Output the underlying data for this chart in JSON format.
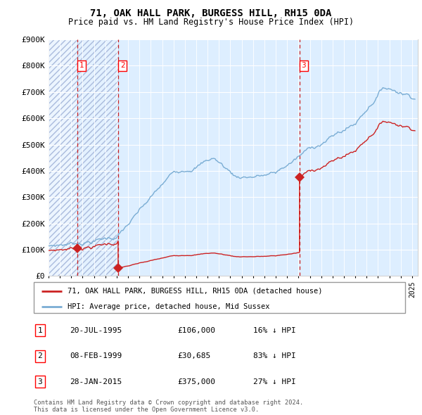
{
  "title": "71, OAK HALL PARK, BURGESS HILL, RH15 0DA",
  "subtitle": "Price paid vs. HM Land Registry's House Price Index (HPI)",
  "ylim": [
    0,
    900000
  ],
  "yticks": [
    0,
    100000,
    200000,
    300000,
    400000,
    500000,
    600000,
    700000,
    800000,
    900000
  ],
  "ytick_labels": [
    "£0",
    "£100K",
    "£200K",
    "£300K",
    "£400K",
    "£500K",
    "£600K",
    "£700K",
    "£800K",
    "£900K"
  ],
  "hpi_color": "#7aadd4",
  "price_color": "#cc2222",
  "background_color": "#ddeeff",
  "sale_points": [
    {
      "date_num": 1995.55,
      "price": 106000,
      "label": "1"
    },
    {
      "date_num": 1999.12,
      "price": 30685,
      "label": "2"
    },
    {
      "date_num": 2015.08,
      "price": 375000,
      "label": "3"
    }
  ],
  "vline_color": "#cc2222",
  "legend_entries": [
    "71, OAK HALL PARK, BURGESS HILL, RH15 0DA (detached house)",
    "HPI: Average price, detached house, Mid Sussex"
  ],
  "table_rows": [
    {
      "num": "1",
      "date": "20-JUL-1995",
      "price": "£106,000",
      "hpi": "16% ↓ HPI"
    },
    {
      "num": "2",
      "date": "08-FEB-1999",
      "price": "£30,685",
      "hpi": "83% ↓ HPI"
    },
    {
      "num": "3",
      "date": "28-JAN-2015",
      "price": "£375,000",
      "hpi": "27% ↓ HPI"
    }
  ],
  "footer": "Contains HM Land Registry data © Crown copyright and database right 2024.\nThis data is licensed under the Open Government Licence v3.0.",
  "xmin": 1993.0,
  "xmax": 2025.5
}
